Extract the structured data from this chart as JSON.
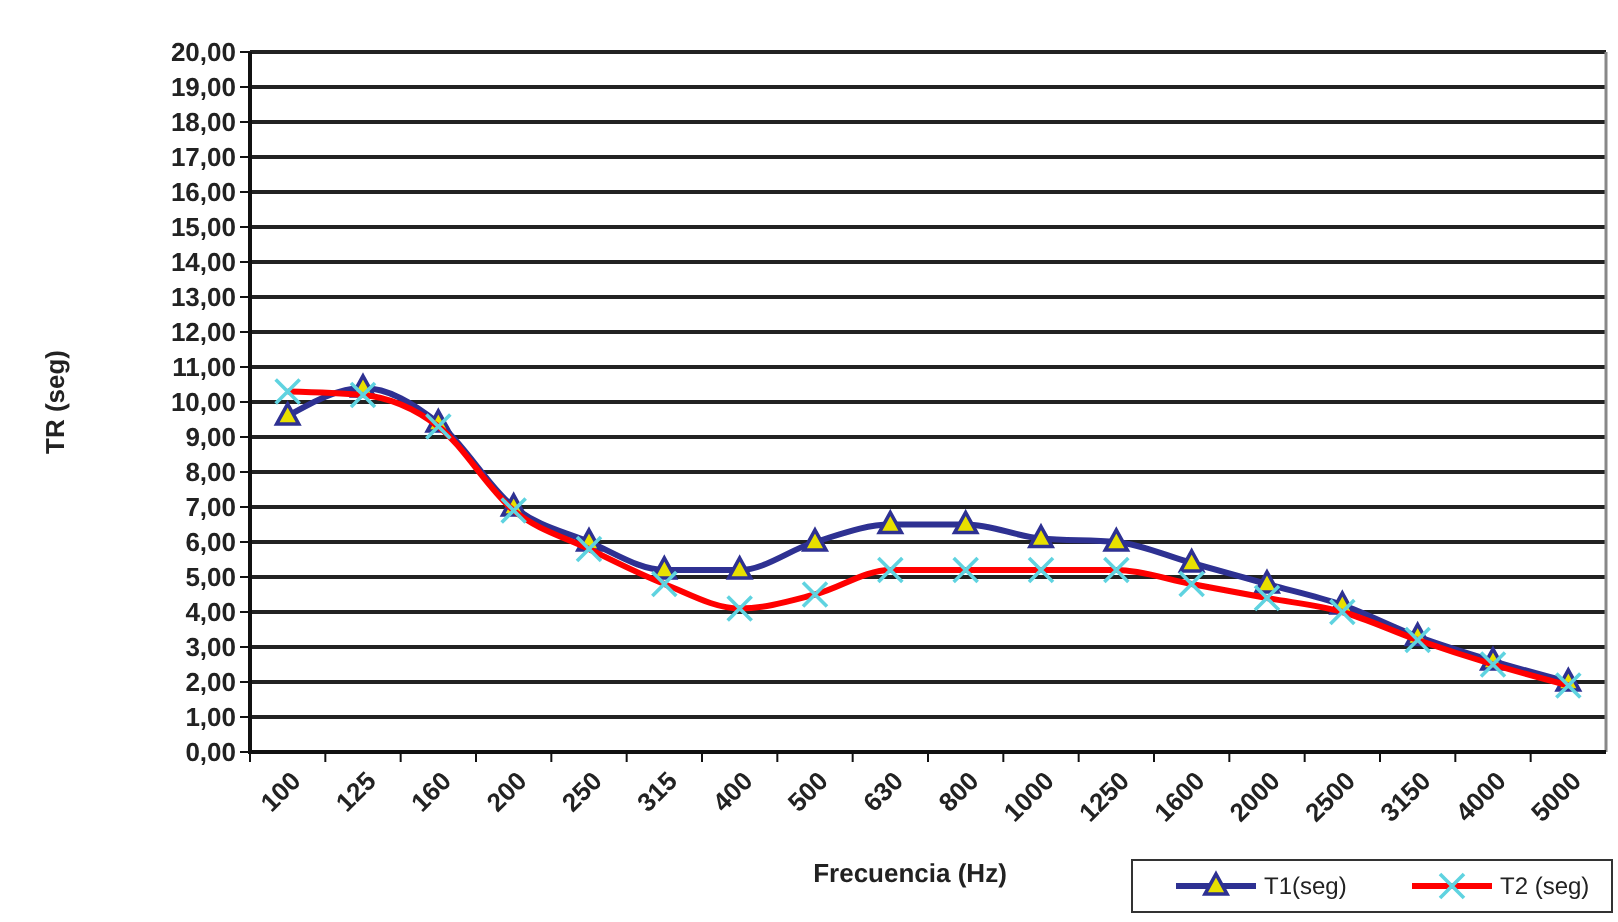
{
  "chart_data": {
    "type": "line",
    "xlabel": "Frecuencia (Hz)",
    "ylabel": "TR (seg)",
    "categories": [
      "100",
      "125",
      "160",
      "200",
      "250",
      "315",
      "400",
      "500",
      "630",
      "800",
      "1000",
      "1250",
      "1600",
      "2000",
      "2500",
      "3150",
      "4000",
      "5000"
    ],
    "series": [
      {
        "name": "T1(seg)",
        "color": "#2e3192",
        "marker": "triangle",
        "values": [
          9.6,
          10.4,
          9.4,
          7.0,
          6.0,
          5.2,
          5.2,
          6.0,
          6.5,
          6.5,
          6.1,
          6.0,
          5.4,
          4.8,
          4.2,
          3.3,
          2.6,
          2.0
        ]
      },
      {
        "name": "T2 (seg)",
        "color": "#ff0000",
        "marker": "cross",
        "values": [
          10.3,
          10.2,
          9.3,
          6.9,
          5.8,
          4.8,
          4.1,
          4.5,
          5.2,
          5.2,
          5.2,
          5.2,
          4.8,
          4.4,
          4.0,
          3.2,
          2.5,
          1.9
        ]
      }
    ],
    "ylim": [
      0,
      20
    ],
    "yticks": [
      {
        "value": 0,
        "label": "0,00"
      },
      {
        "value": 1,
        "label": "1,00"
      },
      {
        "value": 2,
        "label": "2,00"
      },
      {
        "value": 3,
        "label": "3,00"
      },
      {
        "value": 4,
        "label": "4,00"
      },
      {
        "value": 5,
        "label": "5,00"
      },
      {
        "value": 6,
        "label": "6,00"
      },
      {
        "value": 7,
        "label": "7,00"
      },
      {
        "value": 8,
        "label": "8,00"
      },
      {
        "value": 9,
        "label": "9,00"
      },
      {
        "value": 10,
        "label": "10,00"
      },
      {
        "value": 11,
        "label": "11,00"
      },
      {
        "value": 12,
        "label": "12,00"
      },
      {
        "value": 13,
        "label": "13,00"
      },
      {
        "value": 14,
        "label": "14,00"
      },
      {
        "value": 15,
        "label": "15,00"
      },
      {
        "value": 16,
        "label": "16,00"
      },
      {
        "value": 17,
        "label": "17,00"
      },
      {
        "value": 18,
        "label": "18,00"
      },
      {
        "value": 19,
        "label": "19,00"
      },
      {
        "value": 20,
        "label": "20,00"
      }
    ],
    "grid": "y",
    "legend": "bottom right",
    "line_style": "solid"
  }
}
